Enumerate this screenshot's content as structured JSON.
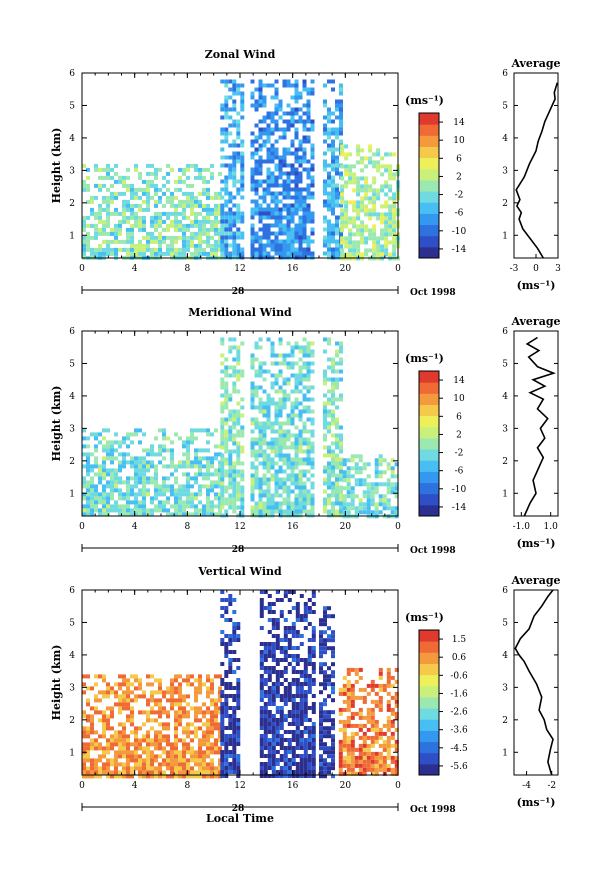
{
  "chart_data": [
    {
      "type": "heatmap",
      "title": "Zonal Wind",
      "ylabel": "Height (km)",
      "xlabel": "",
      "x_ticks": [
        "0",
        "4",
        "8",
        "12",
        "16",
        "20",
        "0"
      ],
      "xlim": [
        0,
        24
      ],
      "y_ticks": [
        "1",
        "2",
        "3",
        "4",
        "5",
        "6"
      ],
      "ylim": [
        0.3,
        6
      ],
      "date_day": "28",
      "date_label": "Oct 1998",
      "colorbar": {
        "unit": "(ms⁻¹)",
        "tick_labels": [
          "14",
          "10",
          "6",
          "2",
          "-2",
          "-6",
          "-10",
          "-14"
        ],
        "range": [
          -16,
          16
        ]
      },
      "data_blocks": [
        {
          "x": [
            0,
            10.5
          ],
          "y": [
            0.3,
            3.2
          ],
          "value": -1
        },
        {
          "x": [
            10.5,
            12.3
          ],
          "y": [
            0.3,
            5.8
          ],
          "value": -6
        },
        {
          "x": [
            12.8,
            17.5
          ],
          "y": [
            0.3,
            5.8
          ],
          "value": -8
        },
        {
          "x": [
            18.3,
            19.6
          ],
          "y": [
            0.3,
            5.8
          ],
          "value": -6
        },
        {
          "x": [
            19.6,
            24
          ],
          "y": [
            0.3,
            3.8
          ],
          "value": 1
        }
      ],
      "average_profile": {
        "title": "Average",
        "xlabel": "(ms⁻¹)",
        "x_ticks": [
          "-3",
          "0",
          "3"
        ],
        "xlim": [
          -3,
          3
        ],
        "ylim": [
          0.3,
          6
        ],
        "y_ticks": [
          "1",
          "2",
          "3",
          "4",
          "5",
          "6"
        ],
        "x": [
          1.0,
          0.2,
          -0.8,
          -1.8,
          -2.3,
          -2.0,
          -2.6,
          -2.2,
          -2.7,
          -1.6,
          -0.9,
          0.0,
          0.3,
          0.8,
          1.2,
          1.8,
          2.2,
          2.6,
          2.5,
          2.9
        ],
        "y": [
          0.3,
          0.6,
          0.9,
          1.2,
          1.5,
          1.7,
          1.9,
          2.1,
          2.4,
          2.8,
          3.2,
          3.6,
          3.9,
          4.2,
          4.5,
          4.8,
          5.0,
          5.2,
          5.4,
          5.7
        ]
      }
    },
    {
      "type": "heatmap",
      "title": "Meridional Wind",
      "ylabel": "Height (km)",
      "xlabel": "",
      "x_ticks": [
        "0",
        "4",
        "8",
        "12",
        "16",
        "20",
        "0"
      ],
      "xlim": [
        0,
        24
      ],
      "y_ticks": [
        "1",
        "2",
        "3",
        "4",
        "5",
        "6"
      ],
      "ylim": [
        0.3,
        6
      ],
      "date_day": "28",
      "date_label": "Oct 1998",
      "colorbar": {
        "unit": "(ms⁻¹)",
        "tick_labels": [
          "14",
          "10",
          "6",
          "2",
          "-2",
          "-6",
          "-10",
          "-14"
        ],
        "range": [
          -16,
          16
        ]
      },
      "data_blocks": [
        {
          "x": [
            0,
            10.5
          ],
          "y": [
            0.3,
            3.0
          ],
          "value": -2
        },
        {
          "x": [
            10.5,
            12.3
          ],
          "y": [
            0.3,
            5.8
          ],
          "value": -1
        },
        {
          "x": [
            12.8,
            17.5
          ],
          "y": [
            0.3,
            5.8
          ],
          "value": -2
        },
        {
          "x": [
            18.3,
            19.8
          ],
          "y": [
            0.3,
            5.8
          ],
          "value": -1
        },
        {
          "x": [
            19.8,
            24
          ],
          "y": [
            0.3,
            2.2
          ],
          "value": -2
        }
      ],
      "average_profile": {
        "title": "Average",
        "xlabel": "(ms⁻¹)",
        "x_ticks": [
          "-1.0",
          "1.0"
        ],
        "xlim": [
          -1.5,
          1.5
        ],
        "ylim": [
          0.3,
          6
        ],
        "y_ticks": [
          "1",
          "2",
          "3",
          "4",
          "5",
          "6"
        ],
        "x": [
          -0.8,
          -0.4,
          0.0,
          -0.2,
          0.2,
          0.5,
          0.1,
          0.6,
          0.3,
          0.8,
          0.1,
          0.5,
          -0.4,
          0.6,
          -0.2,
          1.2,
          0.1,
          -0.5,
          0.2,
          -0.6,
          0.1
        ],
        "y": [
          0.3,
          0.7,
          1.0,
          1.4,
          1.8,
          2.1,
          2.4,
          2.7,
          3.0,
          3.3,
          3.6,
          3.9,
          4.1,
          4.3,
          4.5,
          4.7,
          4.9,
          5.2,
          5.4,
          5.6,
          5.8
        ]
      }
    },
    {
      "type": "heatmap",
      "title": "Vertical Wind",
      "ylabel": "Height (km)",
      "xlabel": "Local Time",
      "x_ticks": [
        "0",
        "4",
        "8",
        "12",
        "16",
        "20",
        "0"
      ],
      "xlim": [
        0,
        24
      ],
      "y_ticks": [
        "1",
        "2",
        "3",
        "4",
        "5",
        "6"
      ],
      "ylim": [
        0.3,
        6
      ],
      "date_day": "28",
      "date_label": "Oct 1998",
      "colorbar": {
        "unit": "(ms⁻¹)",
        "tick_labels": [
          "1.5",
          "0.6",
          "-0.6",
          "-1.6",
          "-2.6",
          "-3.6",
          "-4.5",
          "-5.6"
        ],
        "range": [
          -6,
          2
        ]
      },
      "data_blocks": [
        {
          "x": [
            0,
            10.5
          ],
          "y": [
            0.3,
            3.4
          ],
          "value": 0.5
        },
        {
          "x": [
            10.5,
            12.0
          ],
          "y": [
            0.3,
            6.0
          ],
          "value": -5.5
        },
        {
          "x": [
            13.5,
            17.5
          ],
          "y": [
            0.3,
            6.0
          ],
          "value": -5.5
        },
        {
          "x": [
            18.0,
            19.0
          ],
          "y": [
            0.3,
            5.5
          ],
          "value": -5.5
        },
        {
          "x": [
            19.5,
            24
          ],
          "y": [
            0.3,
            3.6
          ],
          "value": 0.8
        }
      ],
      "average_profile": {
        "title": "Average",
        "xlabel": "(ms⁻¹)",
        "x_ticks": [
          "-4",
          "-2"
        ],
        "xlim": [
          -5,
          -1.5
        ],
        "ylim": [
          0.3,
          6
        ],
        "y_ticks": [
          "1",
          "2",
          "3",
          "4",
          "5",
          "6"
        ],
        "x": [
          -2.0,
          -2.3,
          -2.1,
          -1.9,
          -2.4,
          -2.6,
          -3.0,
          -2.8,
          -3.2,
          -3.8,
          -4.2,
          -4.6,
          -4.9,
          -4.5,
          -3.8,
          -3.4,
          -2.8,
          -2.3,
          -1.9
        ],
        "y": [
          0.3,
          0.7,
          1.1,
          1.4,
          1.7,
          2.0,
          2.3,
          2.7,
          3.1,
          3.5,
          3.8,
          4.0,
          4.2,
          4.5,
          4.8,
          5.2,
          5.5,
          5.8,
          6.0
        ]
      }
    }
  ]
}
